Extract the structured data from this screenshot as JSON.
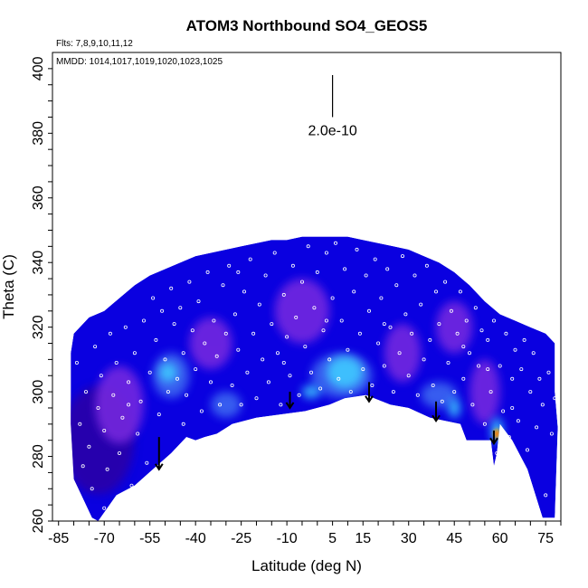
{
  "chart_data": {
    "type": "heatmap",
    "title": "ATOM3 Northbound SO4_GEOS5",
    "flights_label": "Flts: 7,8,9,10,11,12",
    "dates_label": "MMDD: 1014,1017,1019,1020,1023,1025",
    "scale_label": "2.0e-10",
    "xlabel": "Latitude (deg N)",
    "ylabel": "Theta (C)",
    "xlim": [
      -87,
      80
    ],
    "ylim": [
      260,
      405
    ],
    "xticks": [
      "-85",
      "-70",
      "-55",
      "-40",
      "-25",
      "-10",
      "5",
      "15",
      "30",
      "45",
      "60",
      "75"
    ],
    "yticks": [
      "260",
      "280",
      "300",
      "320",
      "340",
      "360",
      "380",
      "400"
    ],
    "colormap": [
      "#2a00a8",
      "#0a00e0",
      "#7a2adf",
      "#3f6df2",
      "#3fd0ff",
      "#ffcf00",
      "#ff2a00"
    ],
    "field_outline": [
      [
        -81,
        312
      ],
      [
        -80,
        318
      ],
      [
        -75,
        323
      ],
      [
        -70,
        325
      ],
      [
        -65,
        329
      ],
      [
        -60,
        333
      ],
      [
        -55,
        336
      ],
      [
        -50,
        338
      ],
      [
        -45,
        340
      ],
      [
        -40,
        342
      ],
      [
        -35,
        343
      ],
      [
        -30,
        344
      ],
      [
        -25,
        345
      ],
      [
        -20,
        346
      ],
      [
        -15,
        347
      ],
      [
        -10,
        347
      ],
      [
        -5,
        348
      ],
      [
        0,
        348
      ],
      [
        5,
        348
      ],
      [
        10,
        348
      ],
      [
        15,
        347
      ],
      [
        20,
        346
      ],
      [
        25,
        345
      ],
      [
        30,
        344
      ],
      [
        35,
        342
      ],
      [
        40,
        340
      ],
      [
        45,
        337
      ],
      [
        50,
        333
      ],
      [
        55,
        328
      ],
      [
        60,
        324
      ],
      [
        65,
        322
      ],
      [
        70,
        320
      ],
      [
        75,
        318
      ],
      [
        78,
        315
      ],
      [
        78,
        300
      ],
      [
        79,
        289
      ],
      [
        78,
        261
      ],
      [
        74,
        261
      ],
      [
        69,
        276
      ],
      [
        64,
        285
      ],
      [
        60,
        290
      ],
      [
        59,
        281
      ],
      [
        58,
        277
      ],
      [
        57,
        285
      ],
      [
        53,
        285
      ],
      [
        49,
        285
      ],
      [
        47,
        290
      ],
      [
        42,
        291
      ],
      [
        37,
        292
      ],
      [
        30,
        295
      ],
      [
        24,
        296
      ],
      [
        16,
        299
      ],
      [
        9,
        298
      ],
      [
        4,
        296
      ],
      [
        -4,
        294
      ],
      [
        -12,
        293
      ],
      [
        -20,
        292
      ],
      [
        -28,
        290
      ],
      [
        -33,
        287
      ],
      [
        -37,
        286
      ],
      [
        -40,
        285
      ],
      [
        -43,
        286
      ],
      [
        -48,
        281
      ],
      [
        -54,
        276
      ],
      [
        -60,
        271
      ],
      [
        -66,
        268
      ],
      [
        -72,
        260
      ],
      [
        -74,
        261
      ],
      [
        -80,
        273
      ],
      [
        -81,
        290
      ]
    ],
    "field_patches": [
      {
        "lat": -65,
        "theta": 296,
        "rlat": 8,
        "rtheta": 12,
        "level": 2
      },
      {
        "lat": -35,
        "theta": 315,
        "rlat": 7,
        "rtheta": 8,
        "level": 2
      },
      {
        "lat": -5,
        "theta": 325,
        "rlat": 9,
        "rtheta": 10,
        "level": 2
      },
      {
        "lat": 28,
        "theta": 312,
        "rlat": 6,
        "rtheta": 9,
        "level": 2
      },
      {
        "lat": 55,
        "theta": 300,
        "rlat": 5,
        "rtheta": 10,
        "level": 2
      },
      {
        "lat": 45,
        "theta": 320,
        "rlat": 6,
        "rtheta": 8,
        "level": 2
      },
      {
        "lat": -48,
        "theta": 305,
        "rlat": 6,
        "rtheta": 7,
        "level": 3
      },
      {
        "lat": 8,
        "theta": 305,
        "rlat": 10,
        "rtheta": 7,
        "level": 3
      },
      {
        "lat": -30,
        "theta": 296,
        "rlat": 5,
        "rtheta": 4,
        "level": 3
      },
      {
        "lat": 40,
        "theta": 299,
        "rlat": 6,
        "rtheta": 4,
        "level": 3
      },
      {
        "lat": -49,
        "theta": 306,
        "rlat": 3,
        "rtheta": 3,
        "level": 4
      },
      {
        "lat": 9,
        "theta": 306,
        "rlat": 6,
        "rtheta": 5,
        "level": 4
      },
      {
        "lat": -2,
        "theta": 300,
        "rlat": 3,
        "rtheta": 2,
        "level": 4
      },
      {
        "lat": 45,
        "theta": 295,
        "rlat": 2,
        "rtheta": 3,
        "level": 4
      },
      {
        "lat": 59,
        "theta": 288,
        "rlat": 2,
        "rtheta": 4,
        "level": 4
      },
      {
        "lat": 59,
        "theta": 287,
        "rlat": 1,
        "rtheta": 1.5,
        "level": 5
      },
      {
        "lat": 59,
        "theta": 287,
        "rlat": 0.6,
        "rtheta": 0.8,
        "level": 6
      }
    ],
    "profile_arrows": [
      {
        "lat": -52,
        "theta_top": 286,
        "theta_bottom": 276
      },
      {
        "lat": -9,
        "theta_top": 300,
        "theta_bottom": 295
      },
      {
        "lat": 17,
        "theta_top": 303,
        "theta_bottom": 297
      },
      {
        "lat": 39,
        "theta_top": 297,
        "theta_bottom": 291
      },
      {
        "lat": 58,
        "theta_top": 288,
        "theta_bottom": 284
      }
    ],
    "scale_bar": {
      "lat": 5,
      "theta_top": 398,
      "theta_bottom": 385
    },
    "sample_points": [
      [
        -79,
        309
      ],
      [
        -78,
        290
      ],
      [
        -76,
        300
      ],
      [
        -75,
        283
      ],
      [
        -74,
        270
      ],
      [
        -73,
        314
      ],
      [
        -72,
        295
      ],
      [
        -71,
        305
      ],
      [
        -70,
        288
      ],
      [
        -69,
        276
      ],
      [
        -68,
        318
      ],
      [
        -67,
        299
      ],
      [
        -66,
        309
      ],
      [
        -65,
        281
      ],
      [
        -64,
        292
      ],
      [
        -63,
        320
      ],
      [
        -62,
        303
      ],
      [
        -61,
        271
      ],
      [
        -60,
        312
      ],
      [
        -59,
        287
      ],
      [
        -58,
        297
      ],
      [
        -57,
        322
      ],
      [
        -56,
        278
      ],
      [
        -55,
        306
      ],
      [
        -54,
        329
      ],
      [
        -53,
        316
      ],
      [
        -52,
        293
      ],
      [
        -51,
        325
      ],
      [
        -50,
        310
      ],
      [
        -49,
        300
      ],
      [
        -48,
        332
      ],
      [
        -47,
        321
      ],
      [
        -46,
        304
      ],
      [
        -45,
        326
      ],
      [
        -44,
        312
      ],
      [
        -43,
        299
      ],
      [
        -42,
        334
      ],
      [
        -41,
        319
      ],
      [
        -40,
        307
      ],
      [
        -39,
        328
      ],
      [
        -38,
        294
      ],
      [
        -37,
        315
      ],
      [
        -36,
        337
      ],
      [
        -35,
        303
      ],
      [
        -34,
        322
      ],
      [
        -33,
        311
      ],
      [
        -32,
        296
      ],
      [
        -31,
        333
      ],
      [
        -30,
        318
      ],
      [
        -29,
        339
      ],
      [
        -28,
        302
      ],
      [
        -27,
        324
      ],
      [
        -26,
        313
      ],
      [
        -25,
        296
      ],
      [
        -24,
        331
      ],
      [
        -23,
        306
      ],
      [
        -22,
        341
      ],
      [
        -21,
        318
      ],
      [
        -20,
        298
      ],
      [
        -19,
        327
      ],
      [
        -18,
        310
      ],
      [
        -17,
        336
      ],
      [
        -16,
        303
      ],
      [
        -15,
        321
      ],
      [
        -14,
        343
      ],
      [
        -13,
        312
      ],
      [
        -12,
        296
      ],
      [
        -11,
        330
      ],
      [
        -10,
        317
      ],
      [
        -9,
        305
      ],
      [
        -8,
        339
      ],
      [
        -7,
        323
      ],
      [
        -6,
        299
      ],
      [
        -5,
        334
      ],
      [
        -4,
        314
      ],
      [
        -3,
        345
      ],
      [
        -2,
        306
      ],
      [
        -1,
        326
      ],
      [
        0,
        337
      ],
      [
        1,
        301
      ],
      [
        2,
        319
      ],
      [
        3,
        343
      ],
      [
        4,
        310
      ],
      [
        5,
        329
      ],
      [
        6,
        346
      ],
      [
        7,
        304
      ],
      [
        8,
        322
      ],
      [
        9,
        338
      ],
      [
        10,
        313
      ],
      [
        11,
        300
      ],
      [
        12,
        331
      ],
      [
        13,
        344
      ],
      [
        14,
        318
      ],
      [
        15,
        307
      ],
      [
        16,
        336
      ],
      [
        17,
        325
      ],
      [
        18,
        302
      ],
      [
        19,
        341
      ],
      [
        20,
        315
      ],
      [
        21,
        329
      ],
      [
        22,
        308
      ],
      [
        23,
        338
      ],
      [
        24,
        320
      ],
      [
        25,
        300
      ],
      [
        26,
        333
      ],
      [
        27,
        312
      ],
      [
        28,
        342
      ],
      [
        29,
        324
      ],
      [
        30,
        305
      ],
      [
        31,
        318
      ],
      [
        32,
        336
      ],
      [
        33,
        299
      ],
      [
        34,
        327
      ],
      [
        35,
        310
      ],
      [
        36,
        339
      ],
      [
        37,
        316
      ],
      [
        38,
        302
      ],
      [
        39,
        331
      ],
      [
        40,
        321
      ],
      [
        41,
        297
      ],
      [
        42,
        334
      ],
      [
        43,
        309
      ],
      [
        44,
        325
      ],
      [
        45,
        300
      ],
      [
        46,
        318
      ],
      [
        47,
        331
      ],
      [
        48,
        304
      ],
      [
        49,
        322
      ],
      [
        50,
        312
      ],
      [
        51,
        296
      ],
      [
        52,
        326
      ],
      [
        53,
        308
      ],
      [
        54,
        319
      ],
      [
        55,
        290
      ],
      [
        56,
        316
      ],
      [
        57,
        300
      ],
      [
        58,
        322
      ],
      [
        59,
        281
      ],
      [
        60,
        308
      ],
      [
        61,
        294
      ],
      [
        62,
        318
      ],
      [
        63,
        286
      ],
      [
        64,
        304
      ],
      [
        65,
        313
      ],
      [
        66,
        291
      ],
      [
        67,
        307
      ],
      [
        68,
        316
      ],
      [
        69,
        282
      ],
      [
        70,
        300
      ],
      [
        71,
        312
      ],
      [
        72,
        289
      ],
      [
        73,
        304
      ],
      [
        74,
        296
      ],
      [
        75,
        268
      ],
      [
        76,
        306
      ],
      [
        77,
        287
      ],
      [
        78,
        298
      ],
      [
        -77,
        277
      ],
      [
        -70,
        264
      ],
      [
        -62,
        296
      ],
      [
        -44,
        290
      ],
      [
        -26,
        337
      ],
      [
        -11,
        309
      ],
      [
        3,
        322
      ],
      [
        22,
        321
      ],
      [
        48,
        314
      ],
      [
        64,
        295
      ],
      [
        56,
        307
      ]
    ]
  }
}
